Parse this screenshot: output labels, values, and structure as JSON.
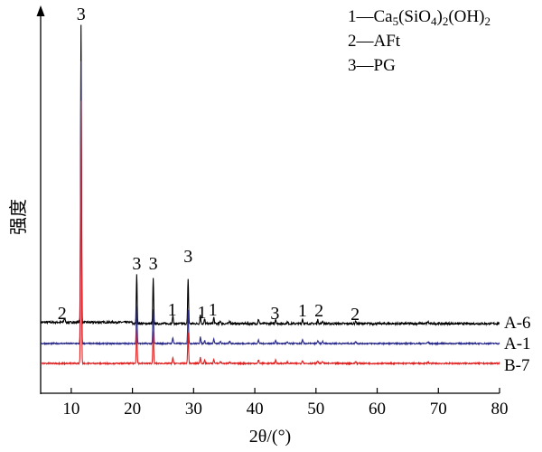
{
  "chart_data": {
    "type": "line",
    "title": "",
    "xlabel": "2θ/(°)",
    "ylabel": "强度",
    "xlim": [
      5,
      80
    ],
    "x_ticks": [
      10,
      20,
      30,
      40,
      50,
      60,
      70,
      80
    ],
    "grid": false,
    "legend": {
      "placement": "top-right",
      "entries": [
        {
          "key": "1",
          "sep": "—",
          "base": "Ca",
          "sub1": "5",
          "mid": "(SiO",
          "sub2": "4",
          "mid2": ")",
          "sub3": "2",
          "tail": "(OH)",
          "sub4": "2"
        },
        {
          "key": "2",
          "sep": "—",
          "base": "AFt"
        },
        {
          "key": "3",
          "sep": "—",
          "base": "PG"
        }
      ]
    },
    "series": [
      {
        "name": "A-6",
        "color": "#000000"
      },
      {
        "name": "A-1",
        "color": "#2a2a8a"
      },
      {
        "name": "B-7",
        "color": "#e02020"
      }
    ],
    "peak_labels": [
      {
        "x": 11.6,
        "label": "3"
      },
      {
        "x": 8.5,
        "label": "2"
      },
      {
        "x": 20.7,
        "label": "3"
      },
      {
        "x": 23.4,
        "label": "3"
      },
      {
        "x": 26.5,
        "label": "1"
      },
      {
        "x": 29.1,
        "label": "3"
      },
      {
        "x": 31.8,
        "label": "1"
      },
      {
        "x": 33.0,
        "label": "1"
      },
      {
        "x": 43.3,
        "label": "3"
      },
      {
        "x": 47.8,
        "label": "1"
      },
      {
        "x": 50.5,
        "label": "2"
      },
      {
        "x": 56.4,
        "label": "2"
      }
    ]
  }
}
